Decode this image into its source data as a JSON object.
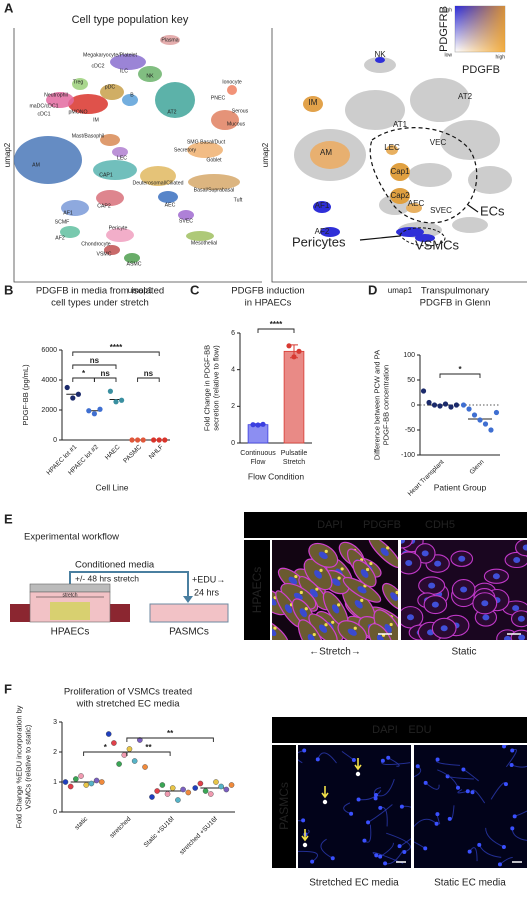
{
  "panel_a": {
    "label": "A",
    "title": "Cell type population key",
    "left_umap": {
      "x_label": "umap1",
      "y_label": "umap2",
      "clusters": [
        "Plasma",
        "Megakaryocyte/Platelet",
        "cDC2",
        "ILC",
        "NK",
        "Treg",
        "pDC",
        "B",
        "Neutrophil",
        "maDC/cDC1",
        "cDC1",
        "pMONO",
        "IM",
        "Ionocyte",
        "PNEC",
        "AT2",
        "Serous",
        "Mucous",
        "Mast/Basophil",
        "SMG Basal/Duct",
        "Secretory",
        "LEC",
        "Goblet",
        "AM",
        "CAP1",
        "Deuterosomal/Ciliated",
        "Basal/Suprabasal",
        "CAP2",
        "AEC",
        "Tuft",
        "SVEC",
        "AF1",
        "Mesothelial",
        "SCMF",
        "Pericyte",
        "AF2",
        "Chondrocyte",
        "VSMC",
        "ASMC"
      ]
    },
    "right_umap": {
      "x_label": "umap1",
      "y_label": "umap2",
      "clusters": [
        "NK",
        "IM",
        "AT2",
        "AT1",
        "AM",
        "LEC",
        "VEC",
        "Cap1",
        "Cap2",
        "AEC",
        "SVEC",
        "AF1",
        "AF2"
      ],
      "groups": [
        "ECs",
        "Pericytes",
        "VSMCs"
      ],
      "key": {
        "y_label": "PDGFRB",
        "x_label": "PDGFB",
        "y_high": "high",
        "low": "low",
        "x_high": "high"
      }
    }
  },
  "chart_data": [
    {
      "panel_label": "B",
      "type": "dot",
      "title": [
        "PDGFB in media from isolated",
        "cell types under stretch"
      ],
      "y_label": [
        "PDGF-BB (pg/mL)"
      ],
      "x_label": "Cell Line",
      "categories": [
        "HPAEC lot #1",
        "HPAEC lot #2",
        "HAEC",
        "PASMC",
        "NHLF"
      ],
      "values": [
        [
          3500,
          2800,
          3050
        ],
        [
          1950,
          1750,
          2050
        ],
        [
          3250,
          2550,
          2650
        ],
        [
          0,
          0,
          0
        ],
        [
          0,
          0,
          0
        ]
      ],
      "means": [
        3050,
        1950,
        2700,
        0,
        0
      ],
      "colors": [
        "#1b2a6b",
        "#3f6fd1",
        "#3a8fa0",
        "#e0573a",
        "#d9342b"
      ],
      "ylim": [
        0,
        6000
      ],
      "yticks": [
        0,
        2000,
        4000,
        6000
      ],
      "annotations": [
        "*",
        "ns",
        "ns",
        "****",
        "ns"
      ]
    },
    {
      "panel_label": "C",
      "type": "bar",
      "title": [
        "PDGFB induction",
        "in HPAECs"
      ],
      "y_label": [
        "Fold Change in PDGF-BB",
        "secretion (relative to flow)"
      ],
      "x_label": "Flow Condition",
      "categories": [
        [
          "Continuous",
          "Flow"
        ],
        [
          "Pulsatile",
          "Stretch"
        ]
      ],
      "values": [
        1.0,
        5.0
      ],
      "errors": [
        0.05,
        0.35
      ],
      "points": [
        [
          1.0,
          0.98,
          1.02
        ],
        [
          5.3,
          4.7,
          5.0
        ]
      ],
      "colors": [
        "#8c8ef2",
        "#e98a86"
      ],
      "point_colors": [
        "#3b3fe0",
        "#d83a32"
      ],
      "ylim": [
        0,
        6
      ],
      "yticks": [
        0,
        2,
        4,
        6
      ],
      "annotations": [
        "****"
      ]
    },
    {
      "panel_label": "D",
      "type": "dot",
      "title": [
        "Transpulmonary",
        "PDGFB in Glenn"
      ],
      "y_label": [
        "Difference between PCW and PA",
        "PDGF-BB concentration"
      ],
      "x_label": "Patient Group",
      "categories": [
        "Heart Transplant",
        "Glenn"
      ],
      "values": [
        [
          28,
          5,
          0,
          -2,
          2,
          -4,
          0
        ],
        [
          0,
          -8,
          -20,
          -30,
          -38,
          -50,
          -15
        ]
      ],
      "means": [
        0,
        -28
      ],
      "colors": [
        "#1b2a6b",
        "#3f6fd1"
      ],
      "ylim": [
        -100,
        100
      ],
      "yticks": [
        -100,
        -50,
        0,
        50,
        100
      ],
      "zero_line": true,
      "annotations": [
        "*"
      ]
    },
    {
      "panel_label": "F",
      "type": "dot",
      "title": [
        "Proliferation of VSMCs treated",
        "with stretched EC media"
      ],
      "y_label": [
        "Fold Change %EDU incorporation by",
        "VSMCs (relative to static)"
      ],
      "categories": [
        "static",
        "stretched",
        "Static +SU16f",
        "stretched +SU16f"
      ],
      "values": [
        [
          1.0,
          0.85,
          1.1,
          1.2,
          0.9,
          0.95,
          1.05,
          1.0
        ],
        [
          2.6,
          2.3,
          1.6,
          1.9,
          2.1,
          1.7,
          2.4,
          1.5
        ],
        [
          0.5,
          0.7,
          0.9,
          0.6,
          0.8,
          0.4,
          0.75,
          0.65
        ],
        [
          0.8,
          0.95,
          0.7,
          0.6,
          1.0,
          0.85,
          0.75,
          0.9
        ]
      ],
      "means": [
        1.0,
        2.0,
        0.7,
        0.8
      ],
      "point_colors": [
        "#1f3fbf",
        "#e0404a",
        "#3aa655",
        "#f09ab0",
        "#e8c547",
        "#56b4c8",
        "#7b5fc1",
        "#f08a3c"
      ],
      "ylim": [
        0,
        3
      ],
      "yticks": [
        0,
        1,
        2,
        3
      ],
      "annotations": [
        "*",
        "**",
        "**"
      ]
    }
  ],
  "panel_e": {
    "label": "E",
    "workflow": {
      "title": "Experimental workflow",
      "media": "Conditioned media",
      "stretch_time": "+/- 48 hrs stretch",
      "stretch": "stretch",
      "edu": "+EDU→",
      "edu_time": "24 hrs",
      "source": "HPAECs",
      "target": "PASMCs"
    },
    "images": {
      "stains": [
        "DAPI",
        "PDGFB",
        "CDH5"
      ],
      "row_label": "HPAECs",
      "captions": [
        "←Stretch→",
        "Static"
      ]
    }
  },
  "panel_f_images": {
    "stains": [
      "DAPI",
      "EDU"
    ],
    "row_label": "PASMCs",
    "captions": [
      "Stretched EC media",
      "Static EC media"
    ]
  }
}
